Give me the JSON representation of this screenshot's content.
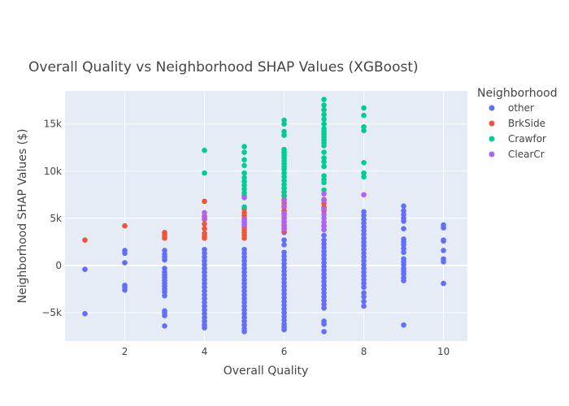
{
  "chart_data": {
    "type": "scatter",
    "title": "Overall Quality vs Neighborhood SHAP Values (XGBoost)",
    "xlabel": "Overall Quality",
    "ylabel": "Neighborhood SHAP Values ($)",
    "xlim": [
      0.5,
      10.6
    ],
    "ylim": [
      -8000,
      18500
    ],
    "x_ticks": [
      2,
      4,
      6,
      8,
      10
    ],
    "y_ticks": [
      {
        "value": -5000,
        "label": "−5k"
      },
      {
        "value": 0,
        "label": "0"
      },
      {
        "value": 5000,
        "label": "5k"
      },
      {
        "value": 10000,
        "label": "10k"
      },
      {
        "value": 15000,
        "label": "15k"
      }
    ],
    "grid": true,
    "legend_title": "Neighborhood",
    "legend_position": "top-right",
    "colors": {
      "plot_bg": "#e5ecf6",
      "grid": "#ffffff"
    },
    "series": [
      {
        "name": "other",
        "color": "#636efa",
        "points": [
          [
            1,
            -400
          ],
          [
            1,
            -5100
          ],
          [
            2,
            1600
          ],
          [
            2,
            1300
          ],
          [
            2,
            300
          ],
          [
            2,
            -2100
          ],
          [
            2,
            -2300
          ],
          [
            2,
            -2600
          ],
          [
            3,
            1600
          ],
          [
            3,
            1200
          ],
          [
            3,
            900
          ],
          [
            3,
            600
          ],
          [
            3,
            -300
          ],
          [
            3,
            -700
          ],
          [
            3,
            -1000
          ],
          [
            3,
            -1300
          ],
          [
            3,
            -1600
          ],
          [
            3,
            -1900
          ],
          [
            3,
            -2200
          ],
          [
            3,
            -2500
          ],
          [
            3,
            -2800
          ],
          [
            3,
            -3200
          ],
          [
            3,
            -4800
          ],
          [
            3,
            -5000
          ],
          [
            3,
            -5300
          ],
          [
            3,
            -6400
          ],
          [
            4,
            1700
          ],
          [
            4,
            1300
          ],
          [
            4,
            900
          ],
          [
            4,
            500
          ],
          [
            4,
            100
          ],
          [
            4,
            -300
          ],
          [
            4,
            -700
          ],
          [
            4,
            -1100
          ],
          [
            4,
            -1500
          ],
          [
            4,
            -1900
          ],
          [
            4,
            -2300
          ],
          [
            4,
            -2700
          ],
          [
            4,
            -3100
          ],
          [
            4,
            -3500
          ],
          [
            4,
            -3900
          ],
          [
            4,
            -4300
          ],
          [
            4,
            -4700
          ],
          [
            4,
            -5100
          ],
          [
            4,
            -5500
          ],
          [
            4,
            -5900
          ],
          [
            4,
            -6300
          ],
          [
            4,
            -6600
          ],
          [
            5,
            1700
          ],
          [
            5,
            1300
          ],
          [
            5,
            900
          ],
          [
            5,
            500
          ],
          [
            5,
            100
          ],
          [
            5,
            -300
          ],
          [
            5,
            -700
          ],
          [
            5,
            -1100
          ],
          [
            5,
            -1500
          ],
          [
            5,
            -1900
          ],
          [
            5,
            -2300
          ],
          [
            5,
            -2700
          ],
          [
            5,
            -3100
          ],
          [
            5,
            -3500
          ],
          [
            5,
            -3900
          ],
          [
            5,
            -4300
          ],
          [
            5,
            -4700
          ],
          [
            5,
            -5100
          ],
          [
            5,
            -5500
          ],
          [
            5,
            -5900
          ],
          [
            5,
            -6300
          ],
          [
            5,
            -6700
          ],
          [
            5,
            -7000
          ],
          [
            6,
            3500
          ],
          [
            6,
            2700
          ],
          [
            6,
            2200
          ],
          [
            6,
            1400
          ],
          [
            6,
            1000
          ],
          [
            6,
            600
          ],
          [
            6,
            200
          ],
          [
            6,
            -200
          ],
          [
            6,
            -600
          ],
          [
            6,
            -1000
          ],
          [
            6,
            -1400
          ],
          [
            6,
            -1800
          ],
          [
            6,
            -2200
          ],
          [
            6,
            -2600
          ],
          [
            6,
            -3000
          ],
          [
            6,
            -3400
          ],
          [
            6,
            -3800
          ],
          [
            6,
            -4200
          ],
          [
            6,
            -4600
          ],
          [
            6,
            -5000
          ],
          [
            6,
            -5400
          ],
          [
            6,
            -5800
          ],
          [
            6,
            -6200
          ],
          [
            6,
            -6500
          ],
          [
            6,
            -6800
          ],
          [
            7,
            4200
          ],
          [
            7,
            3800
          ],
          [
            7,
            3200
          ],
          [
            7,
            2700
          ],
          [
            7,
            2300
          ],
          [
            7,
            1900
          ],
          [
            7,
            1500
          ],
          [
            7,
            1100
          ],
          [
            7,
            700
          ],
          [
            7,
            300
          ],
          [
            7,
            -100
          ],
          [
            7,
            -500
          ],
          [
            7,
            -900
          ],
          [
            7,
            -1300
          ],
          [
            7,
            -1700
          ],
          [
            7,
            -2100
          ],
          [
            7,
            -2500
          ],
          [
            7,
            -2900
          ],
          [
            7,
            -3300
          ],
          [
            7,
            -3700
          ],
          [
            7,
            -4100
          ],
          [
            7,
            -4500
          ],
          [
            7,
            -5900
          ],
          [
            7,
            -6200
          ],
          [
            7,
            -7000
          ],
          [
            8,
            5700
          ],
          [
            8,
            5300
          ],
          [
            8,
            4900
          ],
          [
            8,
            4500
          ],
          [
            8,
            4100
          ],
          [
            8,
            3700
          ],
          [
            8,
            3300
          ],
          [
            8,
            2900
          ],
          [
            8,
            2500
          ],
          [
            8,
            2100
          ],
          [
            8,
            1700
          ],
          [
            8,
            1300
          ],
          [
            8,
            900
          ],
          [
            8,
            500
          ],
          [
            8,
            100
          ],
          [
            8,
            -300
          ],
          [
            8,
            -700
          ],
          [
            8,
            -1100
          ],
          [
            8,
            -1500
          ],
          [
            8,
            -1900
          ],
          [
            8,
            -2300
          ],
          [
            8,
            -2900
          ],
          [
            8,
            -3300
          ],
          [
            8,
            -3800
          ],
          [
            8,
            -4300
          ],
          [
            9,
            6300
          ],
          [
            9,
            5800
          ],
          [
            9,
            5400
          ],
          [
            9,
            5000
          ],
          [
            9,
            4700
          ],
          [
            9,
            3900
          ],
          [
            9,
            2800
          ],
          [
            9,
            2500
          ],
          [
            9,
            2200
          ],
          [
            9,
            1800
          ],
          [
            9,
            1400
          ],
          [
            9,
            700
          ],
          [
            9,
            400
          ],
          [
            9,
            100
          ],
          [
            9,
            -300
          ],
          [
            9,
            -600
          ],
          [
            9,
            -900
          ],
          [
            9,
            -1300
          ],
          [
            9,
            -1600
          ],
          [
            9,
            -6300
          ],
          [
            10,
            4300
          ],
          [
            10,
            4000
          ],
          [
            10,
            2700
          ],
          [
            10,
            2600
          ],
          [
            10,
            1600
          ],
          [
            10,
            700
          ],
          [
            10,
            400
          ],
          [
            10,
            -1900
          ]
        ]
      },
      {
        "name": "BrkSide",
        "color": "#ef553b",
        "points": [
          [
            1,
            2700
          ],
          [
            2,
            4200
          ],
          [
            3,
            3500
          ],
          [
            3,
            3300
          ],
          [
            3,
            3100
          ],
          [
            3,
            2900
          ],
          [
            4,
            6800
          ],
          [
            4,
            5200
          ],
          [
            4,
            4900
          ],
          [
            4,
            4400
          ],
          [
            4,
            3900
          ],
          [
            4,
            3400
          ],
          [
            4,
            3100
          ],
          [
            4,
            2900
          ],
          [
            5,
            6000
          ],
          [
            5,
            5600
          ],
          [
            5,
            5300
          ],
          [
            5,
            5000
          ],
          [
            5,
            4700
          ],
          [
            5,
            4400
          ],
          [
            5,
            4100
          ],
          [
            5,
            3800
          ],
          [
            5,
            3500
          ],
          [
            5,
            3200
          ],
          [
            5,
            2900
          ],
          [
            6,
            7800
          ],
          [
            6,
            7400
          ],
          [
            6,
            7000
          ],
          [
            6,
            6600
          ],
          [
            6,
            6200
          ],
          [
            6,
            5800
          ],
          [
            6,
            5400
          ],
          [
            6,
            5000
          ],
          [
            6,
            4600
          ],
          [
            6,
            4200
          ],
          [
            6,
            3900
          ],
          [
            6,
            3600
          ],
          [
            7,
            7000
          ],
          [
            7,
            6600
          ],
          [
            7,
            6200
          ],
          [
            7,
            5800
          ]
        ]
      },
      {
        "name": "Crawfor",
        "color": "#00cc96",
        "points": [
          [
            4,
            12200
          ],
          [
            4,
            9800
          ],
          [
            5,
            12600
          ],
          [
            5,
            12000
          ],
          [
            5,
            11200
          ],
          [
            5,
            10600
          ],
          [
            5,
            9800
          ],
          [
            5,
            9300
          ],
          [
            5,
            8900
          ],
          [
            5,
            8500
          ],
          [
            5,
            8100
          ],
          [
            5,
            7700
          ],
          [
            5,
            7400
          ],
          [
            5,
            6200
          ],
          [
            6,
            15400
          ],
          [
            6,
            15000
          ],
          [
            6,
            14200
          ],
          [
            6,
            13800
          ],
          [
            6,
            12300
          ],
          [
            6,
            12000
          ],
          [
            6,
            11700
          ],
          [
            6,
            11400
          ],
          [
            6,
            11100
          ],
          [
            6,
            10800
          ],
          [
            6,
            10500
          ],
          [
            6,
            10200
          ],
          [
            6,
            9800
          ],
          [
            6,
            9400
          ],
          [
            6,
            9000
          ],
          [
            6,
            8600
          ],
          [
            6,
            8200
          ],
          [
            6,
            7800
          ],
          [
            6,
            7400
          ],
          [
            7,
            17600
          ],
          [
            7,
            17000
          ],
          [
            7,
            16500
          ],
          [
            7,
            16000
          ],
          [
            7,
            15500
          ],
          [
            7,
            15000
          ],
          [
            7,
            14500
          ],
          [
            7,
            14200
          ],
          [
            7,
            13900
          ],
          [
            7,
            13600
          ],
          [
            7,
            13300
          ],
          [
            7,
            13000
          ],
          [
            7,
            12700
          ],
          [
            7,
            12000
          ],
          [
            7,
            11400
          ],
          [
            7,
            11000
          ],
          [
            7,
            10500
          ],
          [
            7,
            9500
          ],
          [
            7,
            9100
          ],
          [
            7,
            8800
          ],
          [
            7,
            8000
          ],
          [
            8,
            16700
          ],
          [
            8,
            15900
          ],
          [
            8,
            14700
          ],
          [
            8,
            14300
          ],
          [
            8,
            10900
          ],
          [
            8,
            9800
          ],
          [
            8,
            9400
          ]
        ]
      },
      {
        "name": "ClearCr",
        "color": "#ab63fa",
        "points": [
          [
            4,
            5600
          ],
          [
            4,
            5000
          ],
          [
            5,
            7200
          ],
          [
            5,
            4900
          ],
          [
            5,
            4600
          ],
          [
            5,
            4300
          ],
          [
            6,
            6900
          ],
          [
            6,
            6300
          ],
          [
            6,
            5500
          ],
          [
            6,
            5100
          ],
          [
            6,
            4700
          ],
          [
            6,
            4300
          ],
          [
            6,
            3900
          ],
          [
            7,
            7600
          ],
          [
            7,
            6900
          ],
          [
            7,
            6000
          ],
          [
            7,
            5400
          ],
          [
            7,
            5000
          ],
          [
            7,
            4600
          ],
          [
            7,
            4200
          ],
          [
            7,
            3800
          ],
          [
            8,
            7500
          ]
        ]
      }
    ]
  }
}
